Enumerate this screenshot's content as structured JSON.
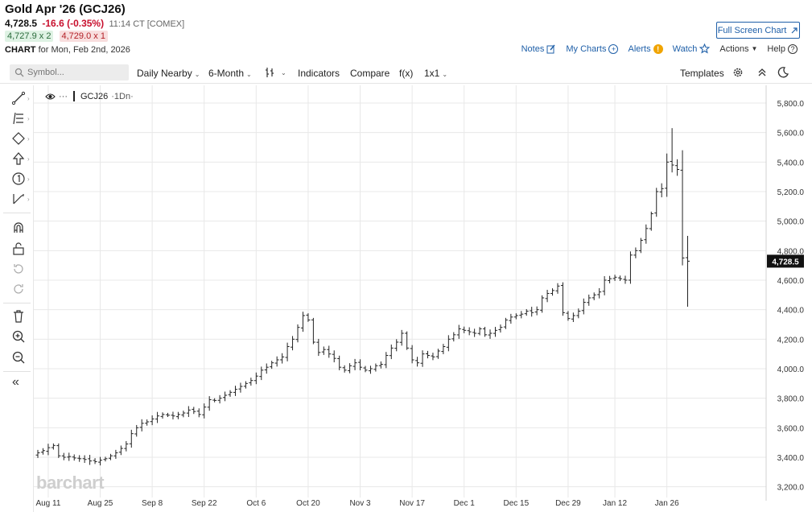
{
  "header": {
    "title": "Gold Apr '26 (GCJ26)",
    "last": "4,728.5",
    "change": "-16.6 (-0.35%)",
    "time": "11:14 CT [COMEX]",
    "bid": "4,727.9 x 2",
    "ask": "4,729.0 x 1",
    "chart_label": "CHART",
    "chart_for": "for Mon, Feb 2nd, 2026",
    "fullscreen_label": "Full Screen Chart"
  },
  "topnav": {
    "notes": "Notes",
    "my_charts": "My Charts",
    "alerts": "Alerts",
    "watch": "Watch",
    "actions": "Actions",
    "help": "Help"
  },
  "toolbar": {
    "symbol_placeholder": "Symbol...",
    "daily_nearby": "Daily Nearby",
    "period": "6-Month",
    "indicators": "Indicators",
    "compare": "Compare",
    "fx": "f(x)",
    "layout": "1x1",
    "templates": "Templates"
  },
  "legend": {
    "symbol": "GCJ26",
    "interval": "·1Dn·"
  },
  "watermark": "barchart",
  "colors": {
    "accent": "#1e5fa8",
    "down": "#c8102e",
    "price_tag": "#111111"
  },
  "icons": [
    "draw-line-icon",
    "fib-icon",
    "shapes-icon",
    "arrow-icon",
    "annotation-icon",
    "measure-icon",
    "magnet-icon",
    "lock-icon",
    "undo-icon",
    "redo-icon",
    "trash-icon",
    "zoom-in-icon",
    "zoom-out-icon",
    "collapse-icon"
  ],
  "chart_data": {
    "type": "ohlc",
    "title": "",
    "xlabel": "",
    "ylabel": "",
    "ylim": [
      3160,
      5920
    ],
    "y_ticks": [
      3200,
      3400,
      3600,
      3800,
      4000,
      4200,
      4400,
      4600,
      4800,
      5000,
      5200,
      5400,
      5600,
      5800
    ],
    "y_tick_labels": [
      "3,200.0",
      "3,400.0",
      "3,600.0",
      "3,800.0",
      "4,000.0",
      "4,200.0",
      "4,400.0",
      "4,600.0",
      "4,800.0",
      "5,000.0",
      "5,200.0",
      "5,400.0",
      "5,600.0",
      "5,800.0"
    ],
    "x_ticks": [
      {
        "label": "Aug 11",
        "index": 2
      },
      {
        "label": "Aug 25",
        "index": 12
      },
      {
        "label": "Sep 8",
        "index": 22
      },
      {
        "label": "Sep 22",
        "index": 32
      },
      {
        "label": "Oct 6",
        "index": 42
      },
      {
        "label": "Oct 20",
        "index": 52
      },
      {
        "label": "Nov 3",
        "index": 62
      },
      {
        "label": "Nov 17",
        "index": 72
      },
      {
        "label": "Dec 1",
        "index": 82
      },
      {
        "label": "Dec 15",
        "index": 92
      },
      {
        "label": "Dec 29",
        "index": 102
      },
      {
        "label": "Jan 12",
        "index": 111
      },
      {
        "label": "Jan 26",
        "index": 121
      }
    ],
    "last_price": 4728.5,
    "last_price_label": "4,728.5",
    "closes": [
      3430,
      3445,
      3465,
      3480,
      3410,
      3400,
      3405,
      3395,
      3390,
      3385,
      3375,
      3370,
      3380,
      3390,
      3410,
      3430,
      3460,
      3490,
      3560,
      3600,
      3630,
      3640,
      3660,
      3680,
      3690,
      3685,
      3680,
      3690,
      3700,
      3720,
      3710,
      3690,
      3740,
      3790,
      3785,
      3800,
      3820,
      3840,
      3860,
      3880,
      3900,
      3920,
      3950,
      3990,
      4010,
      4040,
      4060,
      4080,
      4150,
      4200,
      4280,
      4360,
      4330,
      4180,
      4110,
      4130,
      4100,
      4070,
      4010,
      3990,
      4020,
      4040,
      4010,
      3990,
      4000,
      4020,
      4030,
      4090,
      4140,
      4180,
      4240,
      4140,
      4060,
      4040,
      4100,
      4090,
      4080,
      4120,
      4150,
      4200,
      4230,
      4270,
      4260,
      4250,
      4240,
      4270,
      4230,
      4240,
      4260,
      4280,
      4330,
      4350,
      4360,
      4370,
      4390,
      4380,
      4400,
      4480,
      4510,
      4530,
      4560,
      4380,
      4340,
      4360,
      4390,
      4450,
      4480,
      4500,
      4520,
      4600,
      4610,
      4620,
      4610,
      4600,
      4770,
      4800,
      4870,
      4950,
      5050,
      5200,
      5220,
      5400,
      5380,
      5350,
      4750,
      4728.5
    ]
  }
}
